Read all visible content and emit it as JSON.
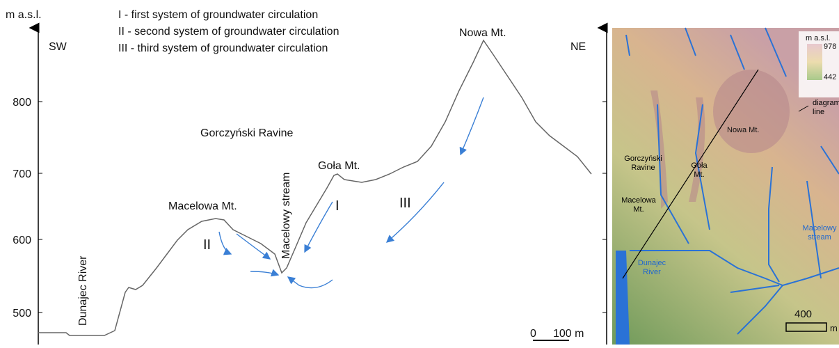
{
  "profile": {
    "axis_unit": "m a.s.l.",
    "left_end": "SW",
    "right_end": "NE",
    "yticks": [
      "800",
      "700",
      "600",
      "500"
    ],
    "legend": [
      "I - first system of groundwater circulation",
      "II - second system of groundwater circulation",
      "III - third system of groundwater circulation"
    ],
    "labels": {
      "nowa": "Nowa Mt.",
      "ravine": "Gorczyński Ravine",
      "stream": "Macelowy stream",
      "gola": "Goła Mt.",
      "macelowa": "Macelowa Mt.",
      "river": "Dunajec River"
    },
    "systems": [
      "I",
      "II",
      "III"
    ],
    "scale": [
      "0",
      "100 m"
    ]
  },
  "map": {
    "legend_unit": "m a.s.l.",
    "max": "978",
    "min": "442",
    "line_label": "diagram line",
    "labels": {
      "nowa": "Nowa Mt.",
      "ravine": "Gorczyński Ravine",
      "gola": "Goła Mt.",
      "macelowa": "Macelowa Mt.",
      "stream": "Macelowy stream",
      "river": "Dunajec River"
    },
    "scale": [
      "400",
      "m"
    ]
  }
}
